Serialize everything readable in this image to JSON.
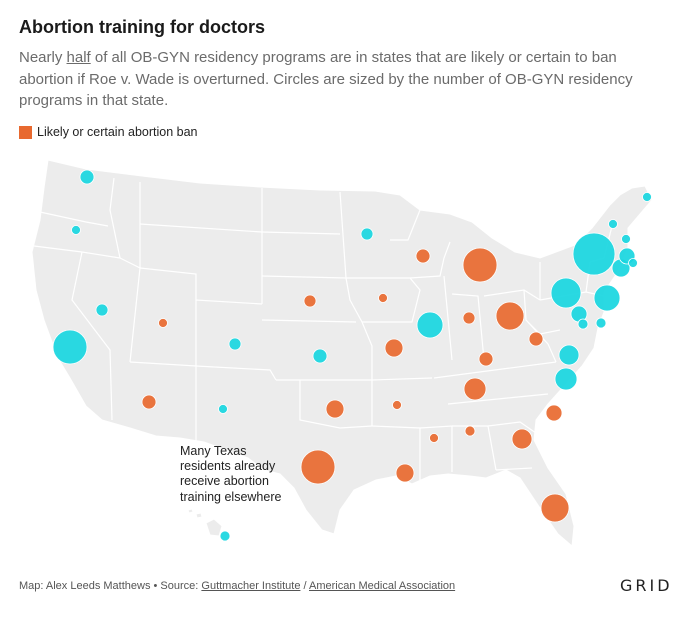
{
  "header": {
    "title": "Abortion training for doctors",
    "subtitle_pre": "Nearly ",
    "subtitle_link": "half",
    "subtitle_post": " of all OB-GYN residency programs are in states that are likely or certain to ban abortion if Roe v. Wade is overturned. Circles are sized by the number of OB-GYN residency programs in that state."
  },
  "legend": {
    "label": "Likely or certain abortion ban",
    "color": "#e8692f"
  },
  "colors": {
    "ban": "#e8692f",
    "no_ban": "#18d6e0",
    "land": "#ececec",
    "border": "#ffffff"
  },
  "annotation": "Many Texas residents already receive abortion training elsewhere",
  "footer": {
    "credit": "Map: Alex Leeds Matthews • Source: ",
    "source1": "Guttmacher Institute",
    "sep": " / ",
    "source2": "American Medical Association"
  },
  "logo": "GRID"
}
